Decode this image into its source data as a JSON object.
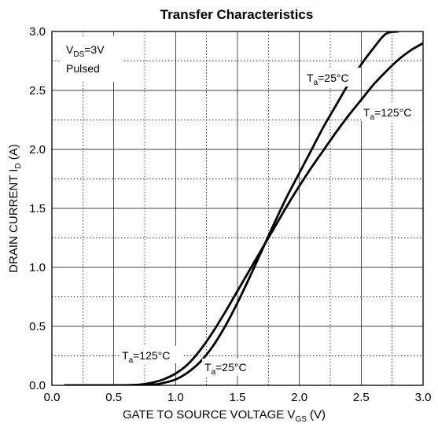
{
  "chart_data": {
    "type": "line",
    "title": "Transfer Characteristics",
    "xlabel": {
      "main": "GATE TO SOURCE VOLTAGE V",
      "sub": "GS",
      "tail": " (V)"
    },
    "ylabel": {
      "main": "DRAIN CURRENT I",
      "sub": "D",
      "tail": " (A)"
    },
    "xlim": [
      0.0,
      3.0
    ],
    "ylim": [
      0.0,
      3.0
    ],
    "x_ticks": [
      "0.0",
      "0.5",
      "1.0",
      "1.5",
      "2.0",
      "2.5",
      "3.0"
    ],
    "y_ticks": [
      "0.0",
      "0.5",
      "1.0",
      "1.5",
      "2.0",
      "2.5",
      "3.0"
    ],
    "grid": "major solid, minor dotted",
    "conditions": [
      {
        "main": "V",
        "sub": "DS",
        "tail": "=3V"
      },
      {
        "main": "Pulsed",
        "sub": "",
        "tail": ""
      }
    ],
    "series": [
      {
        "name": "Ta=25°C",
        "label_top": {
          "main": "T",
          "sub": "a",
          "tail": "=25°C"
        },
        "label_bottom": {
          "main": "T",
          "sub": "a",
          "tail": "=25°C"
        },
        "x": [
          0.1,
          0.5,
          0.8,
          0.9,
          1.0,
          1.1,
          1.2,
          1.3,
          1.4,
          1.5,
          1.6,
          1.7,
          1.8,
          1.9,
          2.0,
          2.1,
          2.2,
          2.3,
          2.4,
          2.5,
          2.6,
          2.7,
          2.8
        ],
        "y": [
          0.0,
          0.0,
          0.005,
          0.02,
          0.05,
          0.11,
          0.2,
          0.33,
          0.5,
          0.7,
          0.92,
          1.15,
          1.38,
          1.6,
          1.8,
          2.0,
          2.2,
          2.38,
          2.56,
          2.72,
          2.86,
          2.98,
          3.0
        ]
      },
      {
        "name": "Ta=125°C",
        "label_top": {
          "main": "T",
          "sub": "a",
          "tail": "=125°C"
        },
        "label_bottom": {
          "main": "T",
          "sub": "a",
          "tail": "=125°C"
        },
        "x": [
          0.1,
          0.5,
          0.7,
          0.8,
          0.9,
          1.0,
          1.1,
          1.2,
          1.3,
          1.4,
          1.5,
          1.6,
          1.7,
          1.8,
          1.9,
          2.0,
          2.1,
          2.2,
          2.3,
          2.4,
          2.5,
          2.6,
          2.7,
          2.8,
          2.9,
          3.0
        ],
        "y": [
          0.0,
          0.0,
          0.005,
          0.02,
          0.05,
          0.1,
          0.18,
          0.3,
          0.45,
          0.62,
          0.8,
          0.98,
          1.16,
          1.34,
          1.52,
          1.69,
          1.85,
          2.0,
          2.15,
          2.29,
          2.42,
          2.55,
          2.66,
          2.76,
          2.84,
          2.9
        ]
      }
    ]
  }
}
